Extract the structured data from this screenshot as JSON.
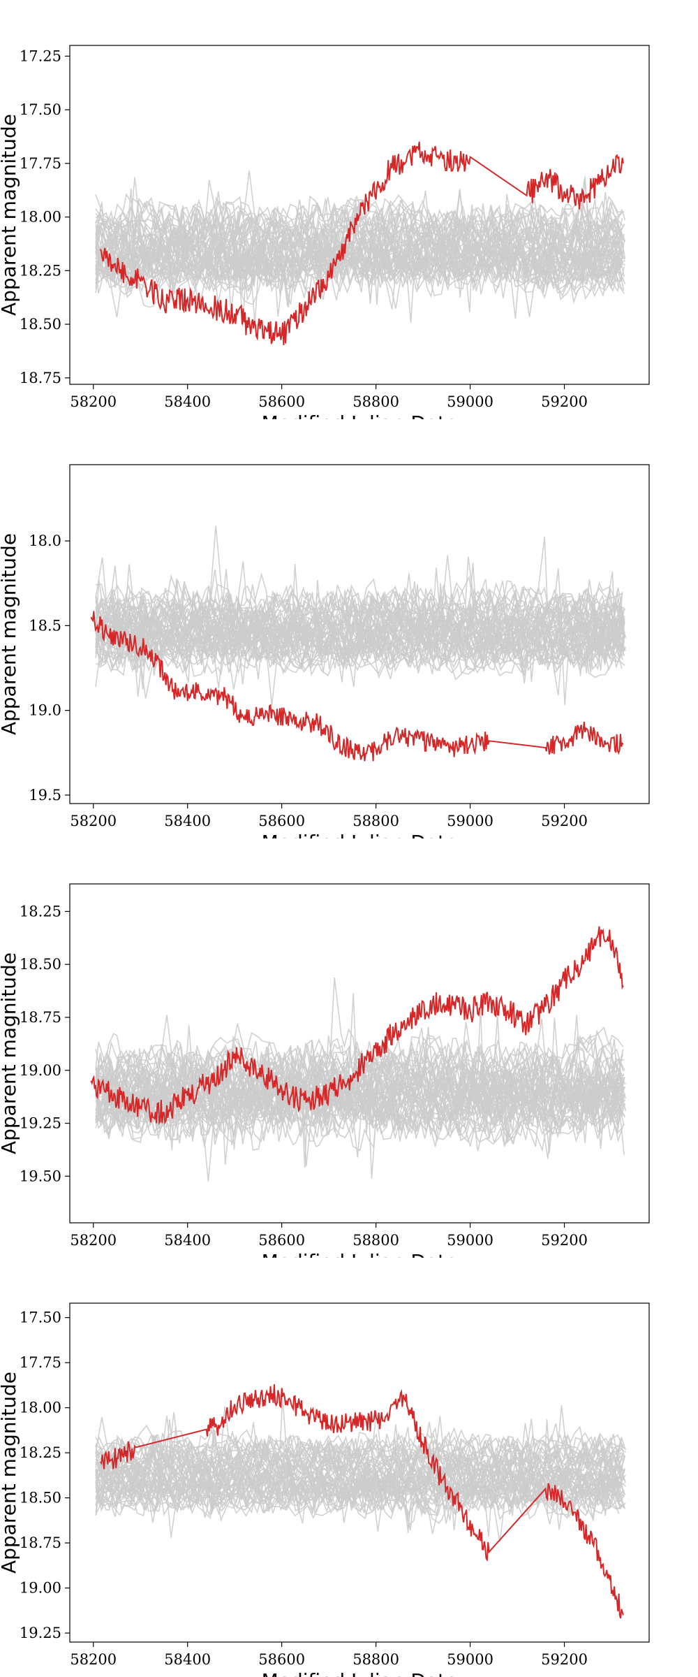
{
  "chart_data": [
    {
      "type": "line",
      "xlabel": "Modified Julian Date",
      "ylabel": "Apparent magnitude",
      "xlim": [
        58150,
        59380
      ],
      "ylim": [
        18.78,
        17.2
      ],
      "y_inverted": true,
      "xticks": [
        "58200",
        "58400",
        "58600",
        "58800",
        "59000",
        "59200"
      ],
      "yticks": [
        "17.25",
        "17.50",
        "17.75",
        "18.00",
        "18.25",
        "18.50",
        "18.75"
      ],
      "background_curves": {
        "color": "#cccccc",
        "count": 50,
        "center": 18.15,
        "scatter": 0.18
      },
      "series": [
        {
          "color": "#d62728",
          "x": [
            58215,
            58240,
            58300,
            58360,
            58400,
            58450,
            58500,
            58540,
            58600,
            58640,
            58700,
            58740,
            58790,
            58830,
            58880,
            58930,
            58970,
            59000,
            59120,
            59160,
            59200,
            59230,
            59270,
            59300,
            59325
          ],
          "y": [
            18.15,
            18.22,
            18.3,
            18.4,
            18.38,
            18.42,
            18.45,
            18.52,
            18.55,
            18.45,
            18.28,
            18.1,
            17.9,
            17.78,
            17.7,
            17.72,
            17.75,
            17.72,
            17.9,
            17.82,
            17.88,
            17.92,
            17.85,
            17.78,
            17.75
          ]
        }
      ]
    },
    {
      "type": "line",
      "xlabel": "Modified Julian Date",
      "ylabel": "Apparent magnitude",
      "xlim": [
        58150,
        59380
      ],
      "ylim": [
        19.55,
        17.55
      ],
      "y_inverted": true,
      "xticks": [
        "58200",
        "58400",
        "58600",
        "58800",
        "59000",
        "59200"
      ],
      "yticks": [
        "18.0",
        "18.5",
        "19.0",
        "19.5"
      ],
      "background_curves": {
        "color": "#cccccc",
        "count": 50,
        "center": 18.52,
        "scatter": 0.22
      },
      "series": [
        {
          "color": "#d62728",
          "x": [
            58195,
            58230,
            58280,
            58320,
            58370,
            58440,
            58480,
            58520,
            58560,
            58620,
            58680,
            58730,
            58790,
            58840,
            58900,
            58960,
            59000,
            59040,
            59160,
            59200,
            59240,
            59280,
            59325
          ],
          "y": [
            18.45,
            18.55,
            18.6,
            18.65,
            18.88,
            18.9,
            18.92,
            19.05,
            19.02,
            19.05,
            19.08,
            19.22,
            19.25,
            19.15,
            19.18,
            19.22,
            19.2,
            19.18,
            19.22,
            19.18,
            19.12,
            19.18,
            19.2
          ]
        }
      ]
    },
    {
      "type": "line",
      "xlabel": "Modified Julian Date",
      "ylabel": "Apparent magnitude",
      "xlim": [
        58150,
        59380
      ],
      "ylim": [
        19.72,
        18.12
      ],
      "y_inverted": true,
      "xticks": [
        "58200",
        "58400",
        "58600",
        "58800",
        "59000",
        "59200"
      ],
      "yticks": [
        "18.25",
        "18.50",
        "18.75",
        "19.00",
        "19.25",
        "19.50"
      ],
      "background_curves": {
        "color": "#cccccc",
        "count": 50,
        "center": 19.1,
        "scatter": 0.2
      },
      "series": [
        {
          "color": "#d62728",
          "x": [
            58195,
            58230,
            58270,
            58310,
            58350,
            58400,
            58470,
            58500,
            58530,
            58580,
            58620,
            58660,
            58700,
            58740,
            58780,
            58840,
            58880,
            58920,
            58960,
            59000,
            59040,
            59080,
            59120,
            59160,
            59200,
            59240,
            59280,
            59310,
            59325
          ],
          "y": [
            19.05,
            19.1,
            19.15,
            19.18,
            19.2,
            19.12,
            19.02,
            18.92,
            18.98,
            19.05,
            19.12,
            19.15,
            19.1,
            19.05,
            18.95,
            18.82,
            18.75,
            18.68,
            18.7,
            18.72,
            18.68,
            18.72,
            18.78,
            18.7,
            18.58,
            18.5,
            18.35,
            18.42,
            18.6
          ]
        }
      ]
    },
    {
      "type": "line",
      "xlabel": "Modified Julian Date",
      "ylabel": "Apparent magnitude",
      "xlim": [
        58150,
        59380
      ],
      "ylim": [
        19.3,
        17.42
      ],
      "y_inverted": true,
      "xticks": [
        "58200",
        "58400",
        "58600",
        "58800",
        "59000",
        "59200"
      ],
      "yticks": [
        "17.50",
        "17.75",
        "18.00",
        "18.25",
        "18.50",
        "18.75",
        "19.00",
        "19.25"
      ],
      "background_curves": {
        "color": "#cccccc",
        "count": 50,
        "center": 18.38,
        "scatter": 0.18
      },
      "series": [
        {
          "color": "#d62728",
          "x": [
            58215,
            58250,
            58290,
            58440,
            58470,
            58500,
            58540,
            58580,
            58620,
            58660,
            58700,
            58780,
            58820,
            58860,
            58900,
            58940,
            58980,
            59010,
            59040,
            59160,
            59190,
            59220,
            59260,
            59290,
            59310,
            59325
          ],
          "y": [
            18.3,
            18.28,
            18.22,
            18.12,
            18.1,
            17.98,
            17.95,
            17.92,
            17.98,
            18.05,
            18.1,
            18.08,
            18.05,
            17.95,
            18.2,
            18.4,
            18.55,
            18.7,
            18.8,
            18.45,
            18.5,
            18.58,
            18.75,
            18.9,
            19.05,
            19.15
          ]
        }
      ]
    }
  ]
}
